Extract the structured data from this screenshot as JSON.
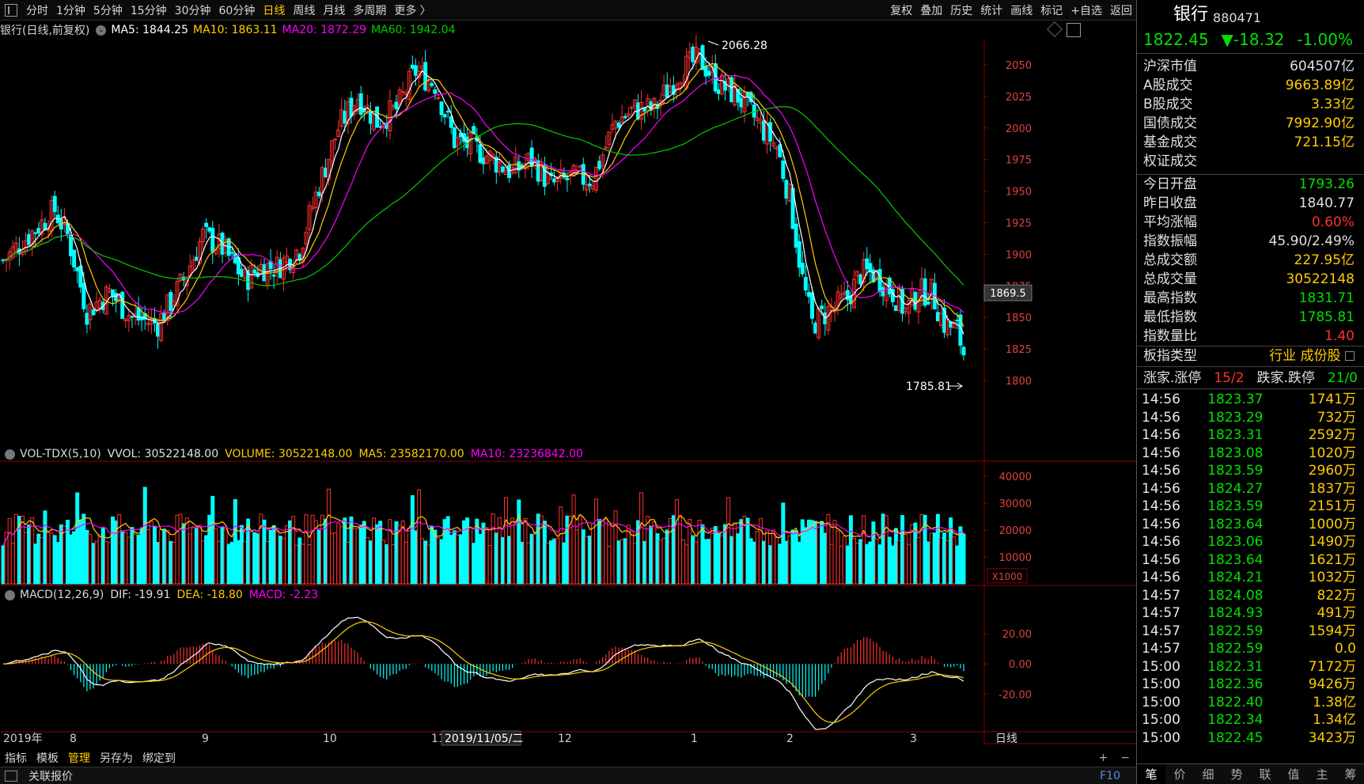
{
  "toolbar": {
    "periods": [
      "分时",
      "1分钟",
      "5分钟",
      "15分钟",
      "30分钟",
      "60分钟",
      "日线",
      "周线",
      "月线",
      "多周期",
      "更多 〉"
    ],
    "active_period": "日线",
    "actions": [
      "复权",
      "叠加",
      "历史",
      "统计",
      "画线",
      "标记",
      "+自选",
      "返回"
    ]
  },
  "main_chart": {
    "title": "银行(日线,前复权)",
    "ma5": "MA5: 1844.25",
    "ma10": "MA10: 1863.11",
    "ma20": "MA20: 1872.29",
    "ma60": "MA60: 1942.04",
    "high_label": "2066.28",
    "low_label": "1785.81",
    "cursor_price": "1869.5",
    "y_ticks": [
      "2050",
      "2025",
      "2000",
      "1975",
      "1950",
      "1925",
      "1900",
      "1875",
      "1850",
      "1825",
      "1800"
    ]
  },
  "volume_chart": {
    "title": "VOL-TDX(5,10)",
    "vvol": "VVOL: 30522148.00",
    "volume": "VOLUME: 30522148.00",
    "ma5": "MA5: 23582170.00",
    "ma10": "MA10: 23236842.00",
    "y_ticks": [
      "40000",
      "30000",
      "20000",
      "10000"
    ],
    "unit": "X1000"
  },
  "macd_chart": {
    "title": "MACD(12,26,9)",
    "dif": "DIF: -19.91",
    "dea": "DEA: -18.80",
    "macd": "MACD: -2.23",
    "y_ticks": [
      "20.00",
      "0.00",
      "-20.00"
    ]
  },
  "x_axis": {
    "labels": [
      "2019年",
      "8",
      "9",
      "10",
      "11",
      "12",
      "1",
      "2",
      "3"
    ],
    "cursor_date": "2019/11/05/二",
    "period_label": "日线"
  },
  "bottom_bar": {
    "items": [
      "指标",
      "模板",
      "管理",
      "另存为",
      "绑定到"
    ],
    "active": "管理",
    "plus": "+",
    "minus": "−"
  },
  "status_bar": {
    "label": "关联报价",
    "f10": "F10"
  },
  "panel": {
    "name": "银行",
    "code": "880471",
    "price": "1822.45",
    "change": "▼-18.32",
    "change_pct": "-1.00%",
    "stats": [
      {
        "label": "沪深市值",
        "value": "604507亿",
        "color": "#e0e0e0"
      },
      {
        "label": "A股成交",
        "value": "9663.89亿",
        "color": "#ffcc00"
      },
      {
        "label": "B股成交",
        "value": "3.33亿",
        "color": "#ffcc00"
      },
      {
        "label": "国债成交",
        "value": "7992.90亿",
        "color": "#ffcc00"
      },
      {
        "label": "基金成交",
        "value": "721.15亿",
        "color": "#ffcc00"
      },
      {
        "label": "权证成交",
        "value": "",
        "color": "#ffcc00"
      }
    ],
    "stats2": [
      {
        "label": "今日开盘",
        "value": "1793.26",
        "color": "#00e000"
      },
      {
        "label": "昨日收盘",
        "value": "1840.77",
        "color": "#e0e0e0"
      },
      {
        "label": "平均涨幅",
        "value": "0.60%",
        "color": "#ff3030"
      },
      {
        "label": "指数振幅",
        "value": "45.90/2.49%",
        "color": "#e0e0e0"
      },
      {
        "label": "总成交额",
        "value": "227.95亿",
        "color": "#ffcc00"
      },
      {
        "label": "总成交量",
        "value": "30522148",
        "color": "#ffcc00"
      },
      {
        "label": "最高指数",
        "value": "1831.71",
        "color": "#00e000"
      },
      {
        "label": "最低指数",
        "value": "1785.81",
        "color": "#00e000"
      },
      {
        "label": "指数量比",
        "value": "1.40",
        "color": "#ff3030"
      }
    ],
    "sector_label": "板指类型",
    "sector_value": "行业 成份股",
    "up_label": "涨家.涨停",
    "up_value": "15/2",
    "down_label": "跌家.跌停",
    "down_value": "21/0",
    "ticks": [
      {
        "time": "14:56",
        "price": "1823.37",
        "vol": "1741万"
      },
      {
        "time": "14:56",
        "price": "1823.29",
        "vol": "732万"
      },
      {
        "time": "14:56",
        "price": "1823.31",
        "vol": "2592万"
      },
      {
        "time": "14:56",
        "price": "1823.08",
        "vol": "1020万"
      },
      {
        "time": "14:56",
        "price": "1823.59",
        "vol": "2960万"
      },
      {
        "time": "14:56",
        "price": "1824.27",
        "vol": "1837万"
      },
      {
        "time": "14:56",
        "price": "1823.59",
        "vol": "2151万"
      },
      {
        "time": "14:56",
        "price": "1823.64",
        "vol": "1000万"
      },
      {
        "time": "14:56",
        "price": "1823.06",
        "vol": "1490万"
      },
      {
        "time": "14:56",
        "price": "1823.64",
        "vol": "1621万"
      },
      {
        "time": "14:56",
        "price": "1824.21",
        "vol": "1032万"
      },
      {
        "time": "14:57",
        "price": "1824.08",
        "vol": "822万"
      },
      {
        "time": "14:57",
        "price": "1824.93",
        "vol": "491万"
      },
      {
        "time": "14:57",
        "price": "1822.59",
        "vol": "1594万"
      },
      {
        "time": "14:57",
        "price": "1822.59",
        "vol": "0.0"
      },
      {
        "time": "15:00",
        "price": "1822.31",
        "vol": "7172万"
      },
      {
        "time": "15:00",
        "price": "1822.36",
        "vol": "9426万"
      },
      {
        "time": "15:00",
        "price": "1822.40",
        "vol": "1.38亿"
      },
      {
        "time": "15:00",
        "price": "1822.34",
        "vol": "1.34亿"
      },
      {
        "time": "15:00",
        "price": "1822.45",
        "vol": "3423万"
      }
    ],
    "tabs": [
      "笔",
      "价",
      "细",
      "势",
      "联",
      "值",
      "主",
      "筹"
    ]
  },
  "colors": {
    "up": "#ff3030",
    "down": "#00ffff",
    "ma5": "#ffffff",
    "ma10": "#ffcc00",
    "ma20": "#ff00ff",
    "ma60": "#00cc00",
    "grid": "#8b0000"
  }
}
